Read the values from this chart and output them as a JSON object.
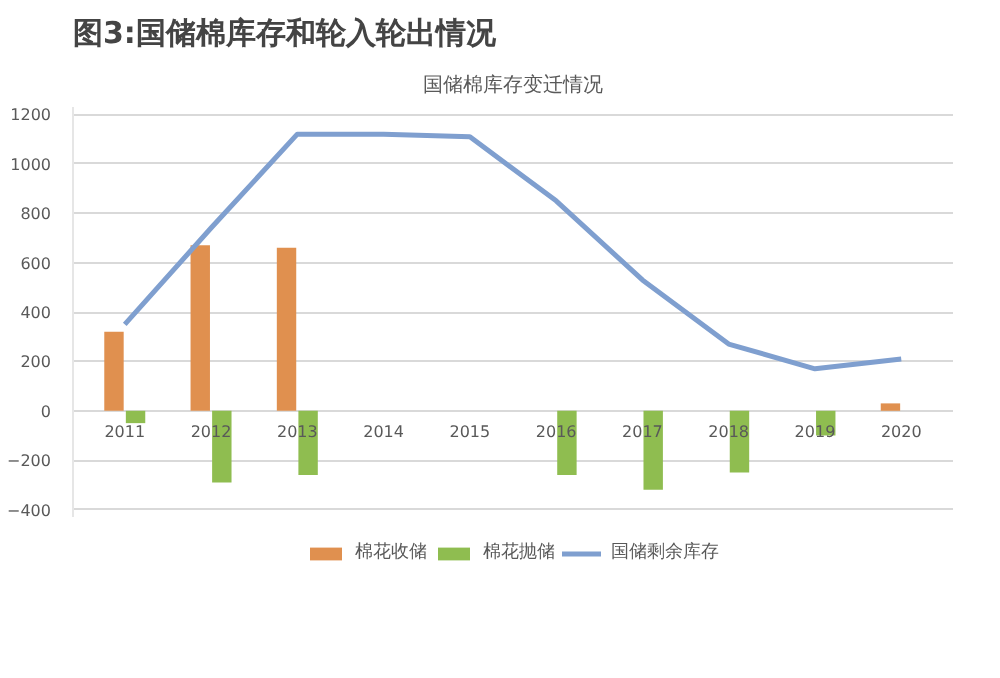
{
  "chart_data": {
    "type": "bar",
    "title": "图3:国储棉库存和轮入轮出情况",
    "subtitle": "国储棉库存变迁情况",
    "categories": [
      "2011",
      "2012",
      "2013",
      "2014",
      "2015",
      "2016",
      "2017",
      "2018",
      "2019",
      "2020"
    ],
    "series": [
      {
        "name": "棉花收储",
        "color": "#e0904f",
        "values": [
          320,
          670,
          660,
          null,
          null,
          null,
          null,
          null,
          null,
          30
        ]
      },
      {
        "name": "棉花抛储",
        "color": "#8fbd50",
        "values": [
          -50,
          -290,
          -260,
          null,
          null,
          -260,
          -320,
          -250,
          -100,
          null
        ]
      },
      {
        "name": "国储剩余库存",
        "type": "line",
        "color": "#7f9fcf",
        "values": [
          350,
          740,
          1120,
          1120,
          1110,
          850,
          530,
          270,
          170,
          210
        ]
      }
    ],
    "ylim": [
      -430,
      1230
    ],
    "yticks": [
      -400,
      -200,
      0,
      200,
      400,
      600,
      800,
      1000,
      1200
    ],
    "grid": "y",
    "legend": "bottom"
  }
}
